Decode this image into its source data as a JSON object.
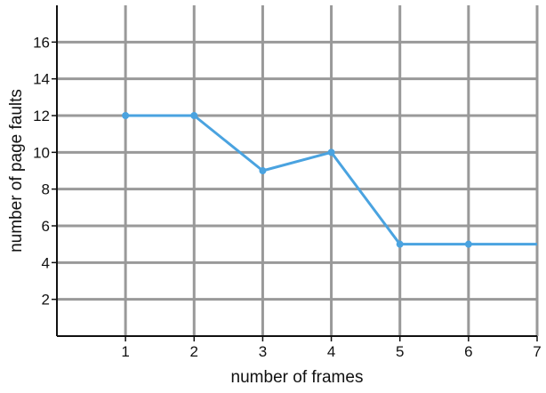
{
  "chart_data": {
    "type": "line",
    "title": "",
    "xlabel": "number of frames",
    "ylabel": "number of page faults",
    "xlim": [
      0,
      7
    ],
    "ylim": [
      0,
      18
    ],
    "x_ticks": [
      1,
      2,
      3,
      4,
      5,
      6,
      7
    ],
    "y_ticks": [
      2,
      4,
      6,
      8,
      10,
      12,
      14,
      16
    ],
    "grid": true,
    "legend": "none",
    "series": [
      {
        "x": [
          1,
          2,
          3,
          4,
          5,
          6,
          7
        ],
        "values": [
          12,
          12,
          9,
          10,
          5,
          5,
          5
        ],
        "color": "#4aa3e0",
        "markers_at": [
          1,
          2,
          3,
          4,
          5,
          6
        ]
      }
    ],
    "grid_color": "#999999",
    "axis_color": "#111111"
  }
}
